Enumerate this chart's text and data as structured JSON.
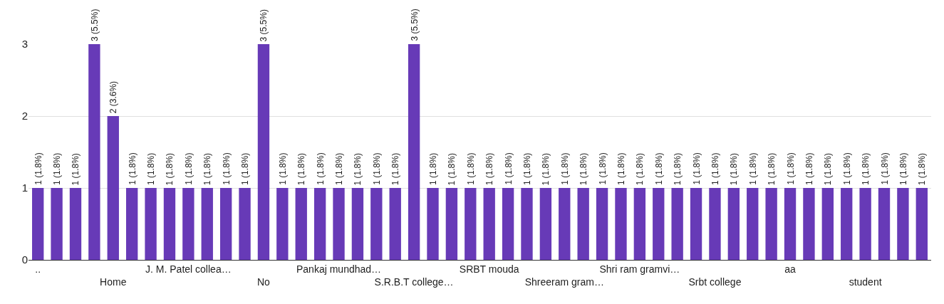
{
  "chart_data": {
    "type": "bar",
    "categories": [
      "..",
      null,
      null,
      null,
      "Home",
      null,
      null,
      null,
      "J. M. Patel collea…",
      null,
      null,
      null,
      "No",
      null,
      null,
      null,
      "Pankaj mundhad…",
      null,
      null,
      null,
      "S.R.B.T college…",
      null,
      null,
      null,
      "SRBT mouda",
      null,
      null,
      null,
      "Shreeram gram…",
      null,
      null,
      null,
      "Shri ram gramvi…",
      null,
      null,
      null,
      "Srbt college",
      null,
      null,
      null,
      "aa",
      null,
      null,
      null,
      "student",
      null,
      null,
      null
    ],
    "values": [
      1,
      1,
      1,
      3,
      2,
      1,
      1,
      1,
      1,
      1,
      1,
      1,
      3,
      1,
      1,
      1,
      1,
      1,
      1,
      1,
      3,
      1,
      1,
      1,
      1,
      1,
      1,
      1,
      1,
      1,
      1,
      1,
      1,
      1,
      1,
      1,
      1,
      1,
      1,
      1,
      1,
      1,
      1,
      1,
      1,
      1,
      1,
      1
    ],
    "value_labels": [
      "1 (1.8%)",
      "1 (1.8%)",
      "1 (1.8%)",
      "3 (5.5%)",
      "2 (3.6%)",
      "1 (1.8%)",
      "1 (1.8%)",
      "1 (1.8%)",
      "1 (1.8%)",
      "1 (1.8%)",
      "1 (1.8%)",
      "1 (1.8%)",
      "3 (5.5%)",
      "1 (1.8%)",
      "1 (1.8%)",
      "1 (1.8%)",
      "1 (1.8%)",
      "1 (1.8%)",
      "1 (1.8%)",
      "1 (1.8%)",
      "3 (5.5%)",
      "1 (1.8%)",
      "1 (1.8%)",
      "1 (1.8%)",
      "1 (1.8%)",
      "1 (1.8%)",
      "1 (1.8%)",
      "1 (1.8%)",
      "1 (1.8%)",
      "1 (1.8%)",
      "1 (1.8%)",
      "1 (1.8%)",
      "1 (1.8%)",
      "1 (1.8%)",
      "1 (1.8%)",
      "1 (1.8%)",
      "1 (1.8%)",
      "1 (1.8%)",
      "1 (1.8%)",
      "1 (1.8%)",
      "1 (1.8%)",
      "1 (1.8%)",
      "1 (1.8%)",
      "1 (1.8%)",
      "1 (1.8%)",
      "1 (1.8%)",
      "1 (1.8%)",
      "1 (1.8%)"
    ],
    "color": "#673ab7",
    "ylim": [
      0,
      3
    ],
    "yticks": [
      0,
      1,
      2,
      3
    ],
    "grid": "y"
  }
}
